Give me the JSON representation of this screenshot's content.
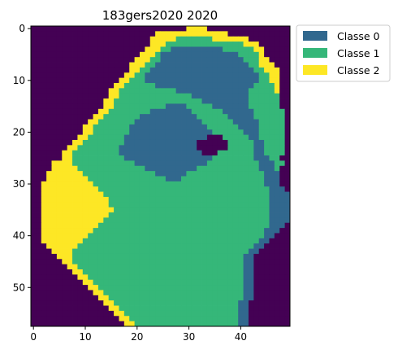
{
  "chart_data": {
    "type": "heatmap",
    "title": "183gers2020 2020",
    "xlabel": "",
    "ylabel": "",
    "columns": 50,
    "rows": 58,
    "xlim": [
      -0.5,
      49.5
    ],
    "ylim": [
      57.5,
      -0.5
    ],
    "x_ticks": [
      0,
      10,
      20,
      30,
      40
    ],
    "y_ticks": [
      0,
      10,
      20,
      30,
      40,
      50
    ],
    "grid": false,
    "legend_position": "outside-top-right",
    "background_class": {
      "value": -1,
      "color": "#440154"
    },
    "classes": [
      {
        "name": "Classe 0",
        "value": 0,
        "color": "#31688e"
      },
      {
        "name": "Classe 1",
        "value": 1,
        "color": "#35b779"
      },
      {
        "name": "Classe 2",
        "value": 2,
        "color": "#fde725"
      }
    ],
    "grid_data": [
      "..............................2222................",
      "........................22222222222222............",
      ".......................2222211111112222222........",
      ".......................222111111111111111222......",
      "......................22211000000000011111122.....",
      ".....................222100000000000000011112.....",
      "....................22211000000000000000011122....",
      "...................2221100000000000000000011222...",
      "...................22110000000000000000000011222..",
      "..................221100000000000000000000001122..",
      ".................2211100000000000000000000001122..",
      "................22111111000000000000000000011112..",
      "...............221111111111100000000000000111112..",
      "...............221111111111111100000000000111111..",
      "..............2211111111111111111000000000111111..",
      "..............2211111111110000111110000000111111..",
      ".............221111111100000000111111000000111111.",
      "............2211111110000000000011111100000111111.",
      "...........22111111100000000000001111110000011111.",
      "..........221111111000000000000000111111000011111.",
      "..........221111111000000000000000011111100011111.",
      ".........2211111110000000000000000...111110011111.",
      "........221111111100000000000000......11111001111.",
      ".......2211111111000000000000000......11111001111.",
      "......221111111110000000000000000...1111111001111.",
      "......221111111111000000000000000001111111100011..",
      "....222211111111111100000000000000111111111100011.",
      "....22222111111111111100000000001111111111110001..",
      "...222222211111111111111000000111111111111111000..",
      "...222222221111111111111110001111111111111111000..",
      "..2222222222111111111111111111111111111111111000..",
      "..22222222222111111111111111111111111111111111000.",
      "..222222222222111111111111111111111111111111110000",
      "..222222222222211111111111111111111111111111110000",
      "..222222222222211111111111111111111111111111110000",
      "..222222222222221111111111111111111111111111110000",
      "..222222222222211111111111111111111111111111110000",
      "..222222222222111111111111111111111111111111110000",
      "..22222222222111111111111111111111111111111111000.",
      "..2222222222111111111111111111111111111111111000..",
      "..222222222111111111111111111111111111111111100...",
      "..22222222111111111111111111111111111111111100....",
      "...222222111111111111111111111111111111111100.....",
      "....2222111111111111111111111111111111111100......",
      ".....22211111111111111111111111111111111100.......",
      "......2211111111111111111111111111111111100.......",
      ".......221111111111111111111111111111111100.......",
      "........22111111111111111111111111111111100.......",
      ".........2211111111111111111111111111111100.......",
      "..........221111111111111111111111111111100.......",
      "...........22111111111111111111111111111100.......",
      "............2211111111111111111111111111100.......",
      ".............221111111111111111111111111100.......",
      "..............2211111111111111111111111100........",
      "...............221111111111111111111111100........",
      "................22111111111111111111111100........",
      ".................2211111111111111111111100........",
      "..................221111111111111111111100........"
    ]
  }
}
